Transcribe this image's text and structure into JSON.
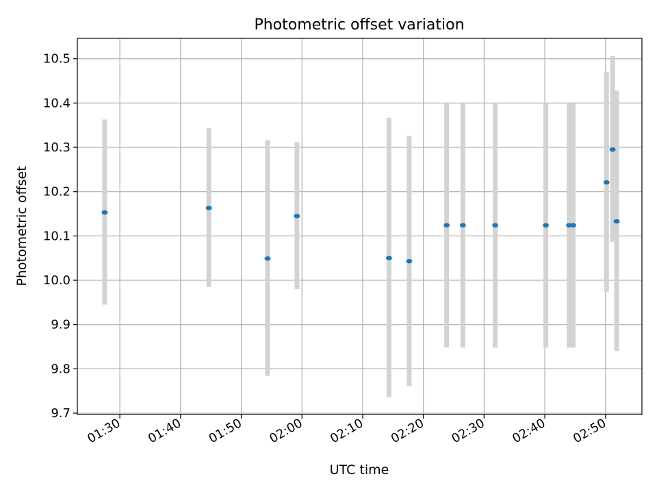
{
  "chart_data": {
    "type": "scatter",
    "title": "Photometric offset variation",
    "xlabel": "UTC time",
    "ylabel": "Photometric offset",
    "xlim": [
      "01:23:00",
      "02:56:00"
    ],
    "ylim": [
      9.697,
      10.546
    ],
    "grid": true,
    "x_ticks": [
      "01:30",
      "01:40",
      "01:50",
      "02:00",
      "02:10",
      "02:20",
      "02:30",
      "02:40",
      "02:50"
    ],
    "y_ticks": [
      "9.7",
      "9.8",
      "9.9",
      "10.0",
      "10.1",
      "10.2",
      "10.3",
      "10.4",
      "10.5"
    ],
    "colors": {
      "point": "#1f77b4",
      "errorbar": "#d3d3d3",
      "grid": "#b0b0b0"
    },
    "series": [
      {
        "points": [
          {
            "x": "01:27:30",
            "y": 10.153,
            "ylow": 9.945,
            "yhigh": 10.363
          },
          {
            "x": "01:44:40",
            "y": 10.163,
            "ylow": 9.985,
            "yhigh": 10.343
          },
          {
            "x": "01:54:20",
            "y": 10.049,
            "ylow": 9.784,
            "yhigh": 10.316
          },
          {
            "x": "01:59:10",
            "y": 10.145,
            "ylow": 9.98,
            "yhigh": 10.312
          },
          {
            "x": "02:14:20",
            "y": 10.05,
            "ylow": 9.736,
            "yhigh": 10.367
          },
          {
            "x": "02:17:40",
            "y": 10.043,
            "ylow": 9.761,
            "yhigh": 10.326
          },
          {
            "x": "02:23:50",
            "y": 10.124,
            "ylow": 9.848,
            "yhigh": 10.4
          },
          {
            "x": "02:26:30",
            "y": 10.124,
            "ylow": 9.848,
            "yhigh": 10.4
          },
          {
            "x": "02:31:50",
            "y": 10.124,
            "ylow": 9.848,
            "yhigh": 10.4
          },
          {
            "x": "02:40:10",
            "y": 10.124,
            "ylow": 9.848,
            "yhigh": 10.4
          },
          {
            "x": "02:44:00",
            "y": 10.124,
            "ylow": 9.848,
            "yhigh": 10.4
          },
          {
            "x": "02:44:40",
            "y": 10.124,
            "ylow": 9.848,
            "yhigh": 10.4
          },
          {
            "x": "02:50:10",
            "y": 10.221,
            "ylow": 9.974,
            "yhigh": 10.47
          },
          {
            "x": "02:51:10",
            "y": 10.295,
            "ylow": 10.087,
            "yhigh": 10.506
          },
          {
            "x": "02:51:50",
            "y": 10.133,
            "ylow": 9.84,
            "yhigh": 10.428
          }
        ]
      }
    ]
  }
}
